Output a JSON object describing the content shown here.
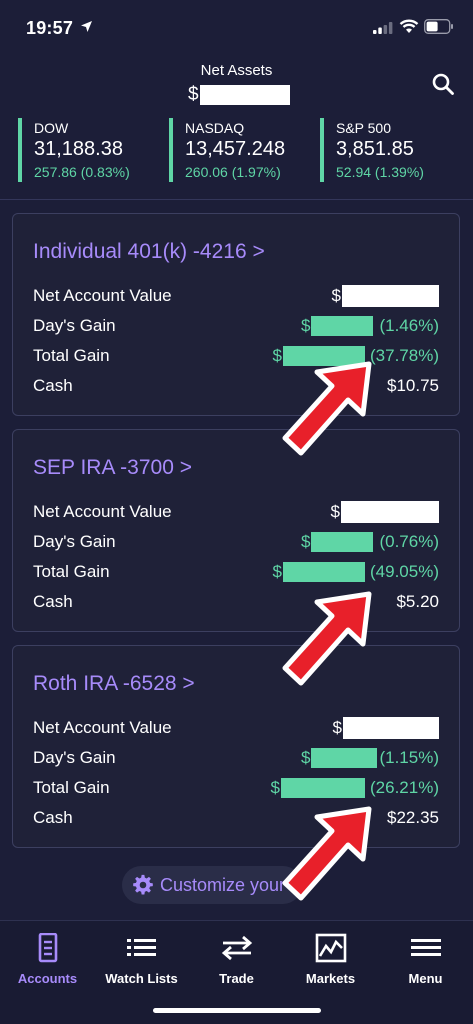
{
  "status_bar": {
    "time": "19:57"
  },
  "header": {
    "net_assets_label": "Net Assets",
    "currency": "$"
  },
  "indices": [
    {
      "name": "DOW",
      "value": "31,188.38",
      "change": "257.86 (0.83%)"
    },
    {
      "name": "NASDAQ",
      "value": "13,457.248",
      "change": "260.06 (1.97%)"
    },
    {
      "name": "S&P 500",
      "value": "3,851.85",
      "change": "52.94 (1.39%)"
    }
  ],
  "accounts": [
    {
      "title": "Individual 401(k) -4216 >",
      "net_label": "Net Account Value",
      "day_label": "Day's Gain",
      "total_label": "Total Gain",
      "cash_label": "Cash",
      "currency": "$",
      "day_pct": "(1.46%)",
      "total_pct": "(37.78%)",
      "cash": "$10.75"
    },
    {
      "title": "SEP IRA -3700 >",
      "net_label": "Net Account Value",
      "day_label": "Day's Gain",
      "total_label": "Total Gain",
      "cash_label": "Cash",
      "currency": "$",
      "day_pct": "(0.76%)",
      "total_pct": "(49.05%)",
      "cash": "$5.20"
    },
    {
      "title": "Roth IRA -6528 >",
      "net_label": "Net Account Value",
      "day_label": "Day's Gain",
      "total_label": "Total Gain",
      "cash_label": "Cash",
      "currency": "$",
      "day_pct": "(1.15%)",
      "total_pct": "(26.21%)",
      "cash": "$22.35"
    }
  ],
  "customize_label": "Customize your",
  "tabs": [
    {
      "label": "Accounts",
      "icon": "document-icon"
    },
    {
      "label": "Watch Lists",
      "icon": "list-icon"
    },
    {
      "label": "Trade",
      "icon": "swap-arrows-icon"
    },
    {
      "label": "Markets",
      "icon": "chart-icon"
    },
    {
      "label": "Menu",
      "icon": "hamburger-menu-icon"
    }
  ],
  "colors": {
    "background": "#1c1e38",
    "accent_purple": "#a78bfa",
    "gain_green": "#5fd6a6",
    "arrow_red": "#e8202a"
  }
}
